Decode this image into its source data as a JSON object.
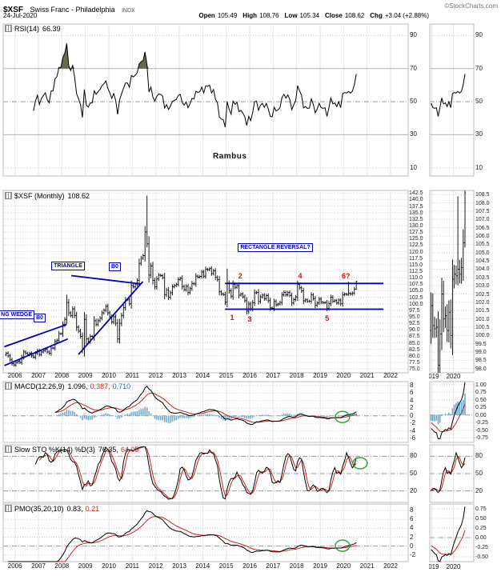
{
  "header": {
    "symbol": "$XSF",
    "title": "Swiss Franc - Philadelphia",
    "exchange": "INDX",
    "copyright": "©StockCharts.com",
    "date": "24-Jul-2020",
    "quote": [
      {
        "label": "Open",
        "value": "105.49"
      },
      {
        "label": "High",
        "value": "108.76"
      },
      {
        "label": "Low",
        "value": "105.34"
      },
      {
        "label": "Close",
        "value": "108.62"
      },
      {
        "label": "Chg",
        "value": "+3.04 (+2.88%)"
      }
    ]
  },
  "watermark": "Rambus",
  "panels": {
    "rsi": {
      "label": "RSI(14)",
      "value": "66.39"
    },
    "price": {
      "label": "$XSF (Monthly)",
      "value": "108.62"
    },
    "macd": {
      "label": "MACD(12,26,9)",
      "v1": "1.096,",
      "v2": "0.387,",
      "v3": "0.710"
    },
    "sto": {
      "label": "Slow STO %K(14) %D(3)",
      "v1": "76.35,",
      "v2": "64.05"
    },
    "pmo": {
      "label": "PMO(35,20,10)",
      "v1": "0.83,",
      "v2": "0.21"
    }
  },
  "colors": {
    "line": "#000000",
    "signal": "#cc2222",
    "histogram": "#6aabcb",
    "annotation": "#0000bb",
    "number": "#cc1111",
    "circle": "#2e9e2e",
    "rsi_fill": "#565a3a",
    "grid": "#cfcfcf",
    "border": "#bdbdbd"
  },
  "chart_data": {
    "type": "multi-panel-financial-chart",
    "timeframe": "Monthly",
    "x_main": {
      "xlim": [
        2005.5,
        2022.75
      ],
      "ticks": [
        2006,
        2007,
        2008,
        2009,
        2010,
        2011,
        2012,
        2013,
        2014,
        2015,
        2016,
        2017,
        2018,
        2019,
        2020,
        2021,
        2022
      ]
    },
    "x_mini": {
      "xlim": [
        2018.9,
        2020.95
      ],
      "ticks": [
        2019,
        2020
      ]
    },
    "price": {
      "type": "ohlc-bar",
      "start_year": 2005,
      "start_month": 8,
      "closes": [
        81.0,
        80.0,
        78.5,
        77.0,
        76.5,
        77.5,
        78.0,
        77.5,
        79.5,
        81.5,
        81.0,
        80.5,
        81.0,
        80.0,
        79.5,
        81.0,
        82.0,
        80.5,
        81.5,
        82.0,
        82.5,
        81.5,
        81.0,
        83.0,
        83.0,
        85.5,
        86.0,
        88.5,
        88.5,
        92.0,
        94.0,
        100.5,
        96.5,
        95.5,
        98.0,
        95.5,
        91.0,
        89.5,
        87.5,
        82.5,
        94.0,
        86.5,
        85.5,
        87.5,
        87.5,
        93.5,
        92.0,
        93.5,
        94.5,
        96.5,
        97.5,
        99.0,
        96.5,
        95.0,
        93.0,
        95.0,
        92.5,
        86.5,
        92.5,
        95.5,
        98.5,
        101.5,
        101.5,
        100.0,
        107.0,
        106.5,
        107.5,
        109.0,
        115.5,
        117.5,
        118.5,
        127.5,
        123.0,
        111.0,
        114.5,
        109.0,
        106.5,
        109.5,
        111.0,
        110.8,
        110.0,
        103.5,
        105.3,
        102.5,
        104.2,
        106.5,
        107.0,
        107.5,
        109.3,
        109.8,
        106.6,
        105.4,
        106.7,
        104.3,
        105.8,
        107.8,
        107.6,
        110.6,
        110.2,
        110.5,
        112.2,
        110.6,
        113.2,
        113.1,
        113.5,
        111.6,
        112.7,
        110.2,
        109.2,
        104.6,
        103.8,
        103.5,
        100.6,
        107.8,
        105.0,
        102.9,
        107.5,
        106.3,
        107.0,
        103.3,
        103.7,
        102.7,
        101.2,
        97.2,
        99.9,
        98.0,
        100.4,
        104.2,
        104.4,
        100.9,
        102.6,
        103.3,
        101.9,
        103.1,
        101.2,
        98.4,
        98.2,
        100.9,
        99.6,
        99.9,
        100.5,
        103.4,
        104.4,
        103.4,
        104.3,
        103.2,
        100.3,
        101.6,
        102.6,
        107.4,
        106.1,
        104.9,
        101.1,
        101.5,
        100.9,
        101.0,
        103.4,
        102.0,
        99.4,
        100.3,
        101.8,
        100.6,
        100.4,
        100.5,
        98.2,
        100.1,
        102.5,
        101.0,
        101.2,
        100.3,
        101.4,
        100.0,
        103.4,
        103.7,
        103.6,
        104.0,
        103.7,
        104.1,
        105.6,
        108.6
      ],
      "high_low_overrides": {
        "31": {
          "h": 103.5
        },
        "57": {
          "l": 85.0
        },
        "72": {
          "h": 141.5
        },
        "113": {
          "h": 113.5
        },
        "175": {
          "h": 108.4
        },
        "179": {
          "h": 108.8,
          "l": 105.3
        }
      },
      "last": 108.62,
      "ylim": [
        73.5,
        143.5
      ],
      "ytick": {
        "min": 75.0,
        "max": 142.5,
        "step": 2.5
      },
      "mini_ylim": [
        97.75,
        108.75
      ],
      "mini_ytick": {
        "min": 98.0,
        "max": 108.5,
        "step": 0.5
      }
    },
    "rsi": {
      "type": "line",
      "period": 14,
      "last": 66.39,
      "ylim": [
        5,
        97
      ],
      "yticks": [
        90,
        70,
        50,
        30,
        10
      ],
      "fill_above": 70
    },
    "macd": {
      "type": "line+histogram",
      "params": [
        12,
        26,
        9
      ],
      "last": [
        1.096,
        0.387,
        0.71
      ],
      "ylim": [
        -7,
        9
      ],
      "yticks": [
        8,
        6,
        4,
        2,
        0,
        -2,
        -4,
        -6
      ],
      "mini_ylim": [
        -0.9,
        1.1
      ],
      "mini_yticks": [
        1.0,
        0.75,
        0.5,
        0.25,
        0.0,
        -0.25,
        -0.5,
        -0.75
      ]
    },
    "sto": {
      "type": "line",
      "params": [
        14,
        3
      ],
      "last": [
        76.35,
        64.05
      ],
      "ylim": [
        0,
        100
      ],
      "yticks": [
        80,
        50,
        20
      ]
    },
    "pmo": {
      "type": "line",
      "params": [
        35,
        20,
        10
      ],
      "last": [
        0.83,
        0.21
      ],
      "ylim": [
        -3.5,
        9.5
      ],
      "yticks": [
        8,
        6,
        4,
        2,
        0,
        -2
      ],
      "mini_ylim": [
        -0.625,
        0.875
      ],
      "mini_yticks": [
        0.75,
        0.5,
        0.25,
        0.0,
        -0.25,
        -0.5
      ]
    },
    "annotations": {
      "boxes": [
        {
          "id": "wedge-label",
          "text": "NG WEDGE",
          "x": 2005.3,
          "y": 95.5
        },
        {
          "id": "breakout-1",
          "text": "B0",
          "x": 2006.8,
          "y": 94.3
        },
        {
          "id": "triangle-label",
          "text": "TRIANGLE",
          "x": 2007.55,
          "y": 114.3
        },
        {
          "id": "breakout-2",
          "text": "B0",
          "x": 2010.0,
          "y": 114.0
        },
        {
          "id": "rectangle-label",
          "text": "RECTANGLE REVERSAL?",
          "x": 2015.5,
          "y": 121.5
        }
      ],
      "numbers": [
        {
          "text": "2",
          "x": 2015.6,
          "y": 110.8
        },
        {
          "text": "4",
          "x": 2018.15,
          "y": 110.8
        },
        {
          "text": "6?",
          "x": 2020.1,
          "y": 110.8
        },
        {
          "text": "1",
          "x": 2015.25,
          "y": 94.6
        },
        {
          "text": "3",
          "x": 2016.0,
          "y": 94.2
        },
        {
          "text": "5",
          "x": 2019.3,
          "y": 94.5
        }
      ],
      "trendlines": [
        [
          2005.55,
          83.5,
          2008.2,
          92.0
        ],
        [
          2005.55,
          76.3,
          2008.25,
          86.5
        ],
        [
          2008.4,
          110.8,
          2011.35,
          107.6
        ],
        [
          2008.7,
          80.5,
          2011.45,
          108.5
        ],
        [
          2014.95,
          107.8,
          2021.7,
          107.8
        ],
        [
          2014.95,
          97.9,
          2021.7,
          97.9
        ]
      ],
      "highlight_circles": [
        {
          "panel": "macd",
          "x": 2019.95,
          "y": -0.3
        },
        {
          "panel": "sto",
          "x": 2020.7,
          "y": 68
        },
        {
          "panel": "pmo",
          "x": 2019.95,
          "y": 0.1
        }
      ]
    }
  }
}
